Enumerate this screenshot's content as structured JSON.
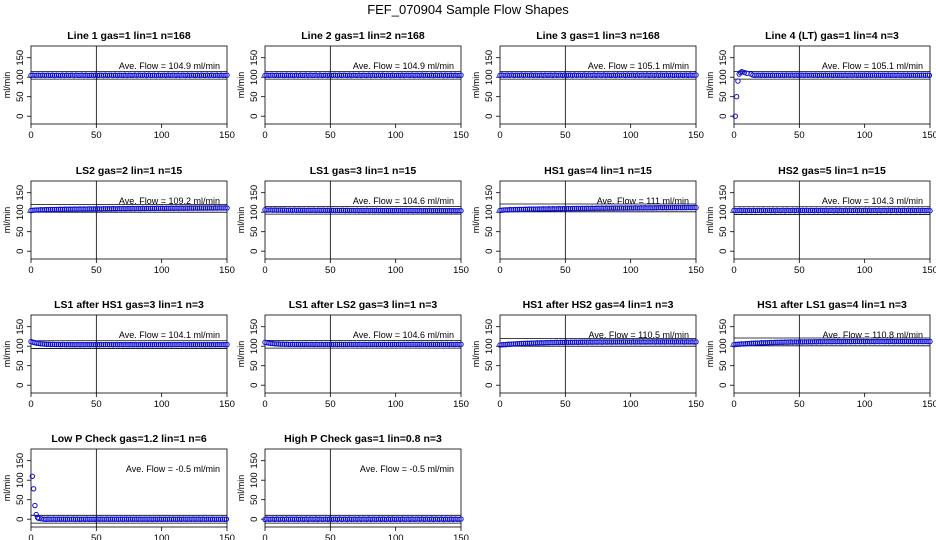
{
  "figure": {
    "title": "FEF_070904  Sample Flow Shapes"
  },
  "chart_data": [
    {
      "type": "scatter",
      "title": "Line 1 gas=1 lin=1 n=168",
      "ylabel": "ml/min",
      "annotation": "Ave. Flow =  104.9  ml/min",
      "xlim": [
        0,
        150
      ],
      "ylim": [
        -20,
        180
      ],
      "xticks": [
        0,
        50,
        100,
        150
      ],
      "yticks": [
        0,
        50,
        100,
        150
      ],
      "hlines": [
        95,
        115
      ],
      "vline": 50,
      "shape": "flat",
      "baseline": 104.9
    },
    {
      "type": "scatter",
      "title": "Line 2 gas=1 lin=2 n=168",
      "ylabel": "ml/min",
      "annotation": "Ave. Flow =  104.9  ml/min",
      "xlim": [
        0,
        150
      ],
      "ylim": [
        -20,
        180
      ],
      "xticks": [
        0,
        50,
        100,
        150
      ],
      "yticks": [
        0,
        50,
        100,
        150
      ],
      "hlines": [
        95,
        115
      ],
      "vline": 50,
      "shape": "flat",
      "baseline": 104.9
    },
    {
      "type": "scatter",
      "title": "Line 3 gas=1 lin=3 n=168",
      "ylabel": "ml/min",
      "annotation": "Ave. Flow =  105.1  ml/min",
      "xlim": [
        0,
        150
      ],
      "ylim": [
        -20,
        180
      ],
      "xticks": [
        0,
        50,
        100,
        150
      ],
      "yticks": [
        0,
        50,
        100,
        150
      ],
      "hlines": [
        95,
        115
      ],
      "vline": 50,
      "shape": "flat",
      "baseline": 105.1
    },
    {
      "type": "scatter",
      "title": "Line 4 (LT) gas=1 lin=4 n=3",
      "ylabel": "ml/min",
      "annotation": "Ave. Flow =  105.1  ml/min",
      "xlim": [
        0,
        150
      ],
      "ylim": [
        -20,
        180
      ],
      "xticks": [
        0,
        50,
        100,
        150
      ],
      "yticks": [
        0,
        50,
        100,
        150
      ],
      "hlines": [
        95,
        115
      ],
      "vline": 50,
      "shape": "startup",
      "baseline": 105.1,
      "initial_points": [
        [
          1,
          0
        ],
        [
          2,
          50
        ],
        [
          3,
          90
        ],
        [
          4,
          108
        ],
        [
          5,
          112
        ],
        [
          6,
          114
        ],
        [
          8,
          112
        ],
        [
          10,
          110
        ],
        [
          13,
          108
        ]
      ]
    },
    {
      "type": "scatter",
      "title": "LS2 gas=2 lin=1 n=15",
      "ylabel": "ml/min",
      "annotation": "Ave. Flow =  109.2  ml/min",
      "xlim": [
        0,
        150
      ],
      "ylim": [
        -20,
        180
      ],
      "xticks": [
        0,
        50,
        100,
        150
      ],
      "yticks": [
        0,
        50,
        100,
        150
      ],
      "hlines": [
        100,
        120
      ],
      "vline": 50,
      "shape": "rise",
      "start": 104,
      "end": 111
    },
    {
      "type": "scatter",
      "title": "LS1 gas=3 lin=1 n=15",
      "ylabel": "ml/min",
      "annotation": "Ave. Flow =  104.6  ml/min",
      "xlim": [
        0,
        150
      ],
      "ylim": [
        -20,
        180
      ],
      "xticks": [
        0,
        50,
        100,
        150
      ],
      "yticks": [
        0,
        50,
        100,
        150
      ],
      "hlines": [
        95,
        115
      ],
      "vline": 50,
      "shape": "rise",
      "start": 106,
      "end": 104
    },
    {
      "type": "scatter",
      "title": "HS1 gas=4 lin=1 n=15",
      "ylabel": "ml/min",
      "annotation": "Ave. Flow =  111  ml/min",
      "xlim": [
        0,
        150
      ],
      "ylim": [
        -20,
        180
      ],
      "xticks": [
        0,
        50,
        100,
        150
      ],
      "yticks": [
        0,
        50,
        100,
        150
      ],
      "hlines": [
        101,
        121
      ],
      "vline": 50,
      "shape": "rise",
      "start": 104,
      "end": 112
    },
    {
      "type": "scatter",
      "title": "HS2 gas=5 lin=1 n=15",
      "ylabel": "ml/min",
      "annotation": "Ave. Flow =  104.3  ml/min",
      "xlim": [
        0,
        150
      ],
      "ylim": [
        -20,
        180
      ],
      "xticks": [
        0,
        50,
        100,
        150
      ],
      "yticks": [
        0,
        50,
        100,
        150
      ],
      "hlines": [
        94,
        114
      ],
      "vline": 50,
      "shape": "flat",
      "baseline": 104.3
    },
    {
      "type": "scatter",
      "title": "LS1 after HS1 gas=3 lin=1 n=3",
      "ylabel": "ml/min",
      "annotation": "Ave. Flow =  104.1  ml/min",
      "xlim": [
        0,
        150
      ],
      "ylim": [
        -20,
        180
      ],
      "xticks": [
        0,
        50,
        100,
        150
      ],
      "yticks": [
        0,
        50,
        100,
        150
      ],
      "hlines": [
        94,
        114
      ],
      "vline": 50,
      "shape": "decay",
      "start": 112,
      "end": 104
    },
    {
      "type": "scatter",
      "title": "LS1 after LS2 gas=3 lin=1 n=3",
      "ylabel": "ml/min",
      "annotation": "Ave. Flow =  104.6  ml/min",
      "xlim": [
        0,
        150
      ],
      "ylim": [
        -20,
        180
      ],
      "xticks": [
        0,
        50,
        100,
        150
      ],
      "yticks": [
        0,
        50,
        100,
        150
      ],
      "hlines": [
        95,
        115
      ],
      "vline": 50,
      "shape": "decay",
      "start": 110,
      "end": 104.6
    },
    {
      "type": "scatter",
      "title": "HS1 after HS2 gas=4 lin=1 n=3",
      "ylabel": "ml/min",
      "annotation": "Ave. Flow =  110.5  ml/min",
      "xlim": [
        0,
        150
      ],
      "ylim": [
        -20,
        180
      ],
      "xticks": [
        0,
        50,
        100,
        150
      ],
      "yticks": [
        0,
        50,
        100,
        150
      ],
      "hlines": [
        100,
        120
      ],
      "vline": 50,
      "shape": "growth",
      "start": 103,
      "end": 111
    },
    {
      "type": "scatter",
      "title": "HS1 after LS1 gas=4 lin=1 n=3",
      "ylabel": "ml/min",
      "annotation": "Ave. Flow =  110.8  ml/min",
      "xlim": [
        0,
        150
      ],
      "ylim": [
        -20,
        180
      ],
      "xticks": [
        0,
        50,
        100,
        150
      ],
      "yticks": [
        0,
        50,
        100,
        150
      ],
      "hlines": [
        101,
        121
      ],
      "vline": 50,
      "shape": "growth",
      "start": 104,
      "end": 112
    },
    {
      "type": "scatter",
      "title": "Low P Check gas=1.2 lin=1 n=6",
      "ylabel": "ml/min",
      "annotation": "Ave. Flow =  -0.5  ml/min",
      "xlim": [
        0,
        150
      ],
      "ylim": [
        -20,
        180
      ],
      "xticks": [
        0,
        50,
        100,
        150
      ],
      "yticks": [
        0,
        50,
        100,
        150
      ],
      "hlines": [
        -10,
        10
      ],
      "vline": 50,
      "shape": "startup",
      "baseline": 0,
      "initial_points": [
        [
          1,
          110
        ],
        [
          2,
          78
        ],
        [
          3,
          35
        ],
        [
          4,
          12
        ],
        [
          5,
          4
        ],
        [
          6,
          2
        ],
        [
          8,
          1
        ],
        [
          10,
          0
        ]
      ]
    },
    {
      "type": "scatter",
      "title": "High P Check gas=1 lin=0.8 n=3",
      "ylabel": "ml/min",
      "annotation": "Ave. Flow =  -0.5  ml/min",
      "xlim": [
        0,
        150
      ],
      "ylim": [
        -20,
        180
      ],
      "xticks": [
        0,
        50,
        100,
        150
      ],
      "yticks": [
        0,
        50,
        100,
        150
      ],
      "hlines": [
        -10,
        10
      ],
      "vline": 50,
      "shape": "flat",
      "baseline": 0
    }
  ],
  "colors": {
    "points": "#1010d0",
    "axis": "#000000",
    "background": "#ffffff"
  }
}
